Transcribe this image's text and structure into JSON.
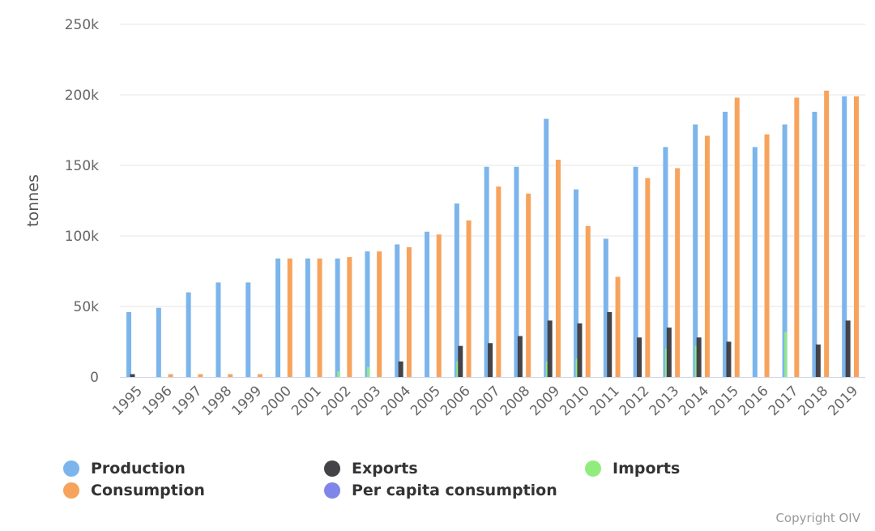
{
  "chart_data": {
    "type": "bar",
    "title": "",
    "xlabel": "",
    "ylabel": "tonnes",
    "ylim": [
      0,
      250000
    ],
    "yticks": [
      {
        "value": 0,
        "label": "0"
      },
      {
        "value": 50000,
        "label": "50k"
      },
      {
        "value": 100000,
        "label": "100k"
      },
      {
        "value": 150000,
        "label": "150k"
      },
      {
        "value": 200000,
        "label": "200k"
      },
      {
        "value": 250000,
        "label": "250k"
      }
    ],
    "categories": [
      "1995",
      "1996",
      "1997",
      "1998",
      "1999",
      "2000",
      "2001",
      "2002",
      "2003",
      "2004",
      "2005",
      "2006",
      "2007",
      "2008",
      "2009",
      "2010",
      "2011",
      "2012",
      "2013",
      "2014",
      "2015",
      "2016",
      "2017",
      "2018",
      "2019"
    ],
    "series": [
      {
        "name": "Production",
        "color": "#7cb5ec",
        "values": [
          46000,
          49000,
          60000,
          67000,
          67000,
          84000,
          84000,
          84000,
          89000,
          94000,
          103000,
          123000,
          149000,
          149000,
          183000,
          133000,
          98000,
          149000,
          163000,
          179000,
          188000,
          163000,
          179000,
          188000,
          199000
        ]
      },
      {
        "name": "Consumption",
        "color": "#f7a35c",
        "values": [
          null,
          2000,
          2000,
          2000,
          2000,
          84000,
          84000,
          85000,
          89000,
          92000,
          101000,
          111000,
          135000,
          130000,
          154000,
          107000,
          71000,
          141000,
          148000,
          171000,
          198000,
          172000,
          198000,
          203000,
          199000
        ]
      },
      {
        "name": "Exports",
        "color": "#434348",
        "values": [
          2000,
          null,
          null,
          null,
          null,
          null,
          null,
          null,
          null,
          11000,
          null,
          22000,
          24000,
          29000,
          40000,
          38000,
          46000,
          28000,
          35000,
          28000,
          25000,
          null,
          null,
          23000,
          40000
        ]
      },
      {
        "name": "Imports",
        "color": "#90ed7d",
        "values": [
          null,
          null,
          null,
          null,
          null,
          null,
          null,
          4000,
          7000,
          null,
          null,
          11000,
          null,
          null,
          11000,
          13000,
          null,
          null,
          20000,
          22000,
          null,
          null,
          32000,
          null,
          null
        ]
      },
      {
        "name": "Per capita consumption",
        "color": "#8085e9",
        "values": [
          null,
          null,
          null,
          null,
          null,
          null,
          null,
          null,
          null,
          null,
          null,
          null,
          null,
          null,
          null,
          null,
          null,
          null,
          null,
          null,
          null,
          null,
          null,
          null,
          null
        ]
      }
    ],
    "legend": [
      {
        "name": "Production",
        "color": "#7cb5ec"
      },
      {
        "name": "Consumption",
        "color": "#f7a35c"
      },
      {
        "name": "Exports",
        "color": "#434348"
      },
      {
        "name": "Per capita consumption",
        "color": "#8085e9"
      },
      {
        "name": "Imports",
        "color": "#90ed7d"
      }
    ],
    "grid": true
  },
  "copyright": "Copyright OIV"
}
